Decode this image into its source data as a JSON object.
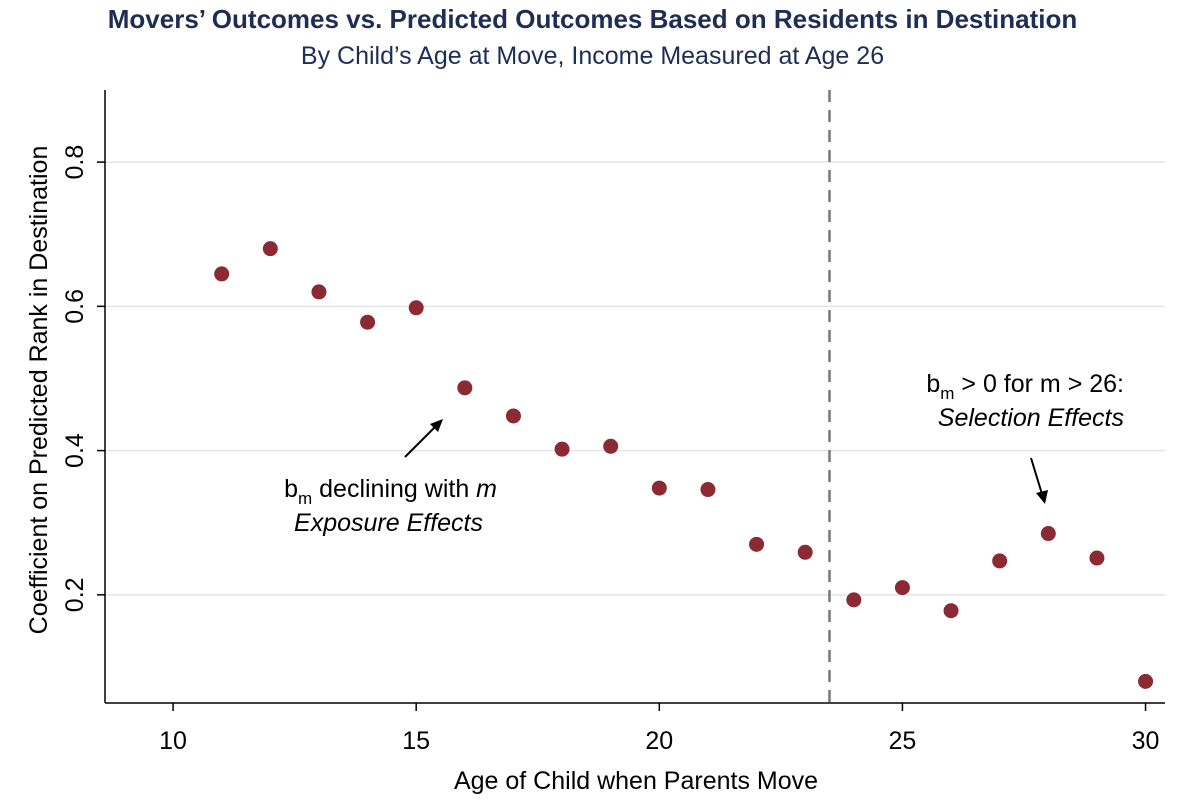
{
  "chart_data": {
    "type": "scatter",
    "title": "Movers’ Outcomes vs. Predicted Outcomes Based on Residents in Destination",
    "subtitle": "By Child’s Age at Move, Income Measured at Age 26",
    "xlabel": "Age of Child when Parents Move",
    "ylabel": "Coefficient on Predicted Rank in Destination",
    "xlim": [
      8.6,
      30.4
    ],
    "ylim": [
      0.05,
      0.9
    ],
    "xticks": [
      10,
      15,
      20,
      25,
      30
    ],
    "yticks": [
      0.2,
      0.4,
      0.6,
      0.8
    ],
    "xtick_labels": [
      "10",
      "15",
      "20",
      "25",
      "30"
    ],
    "ytick_labels": [
      "0.2",
      "0.4",
      "0.6",
      "0.8"
    ],
    "grid": "horizontal",
    "reference_line_x": 23.5,
    "marker_color": "#8b2a33",
    "series": [
      {
        "x": [
          11,
          12,
          13,
          14,
          15,
          16,
          17,
          18,
          19,
          20,
          21,
          22,
          23,
          24,
          25,
          26,
          27,
          28,
          29,
          30
        ],
        "y": [
          0.645,
          0.68,
          0.62,
          0.578,
          0.598,
          0.487,
          0.448,
          0.402,
          0.406,
          0.348,
          0.346,
          0.27,
          0.259,
          0.193,
          0.21,
          0.178,
          0.247,
          0.285,
          0.251,
          0.08
        ]
      }
    ],
    "annotations": [
      {
        "base": "b",
        "sub": "m",
        "rest": " declining with ",
        "emph": "m",
        "line2": "Exposure Effects"
      },
      {
        "base": "b",
        "sub": "m",
        "rest": " > 0 for m > 26:",
        "line2": "Selection Effects"
      }
    ]
  },
  "colors": {
    "title": "#1f2d55",
    "marker": "#8b2a33",
    "grid": "#dde6ea",
    "axis": "#000000",
    "refline": "#777777"
  }
}
